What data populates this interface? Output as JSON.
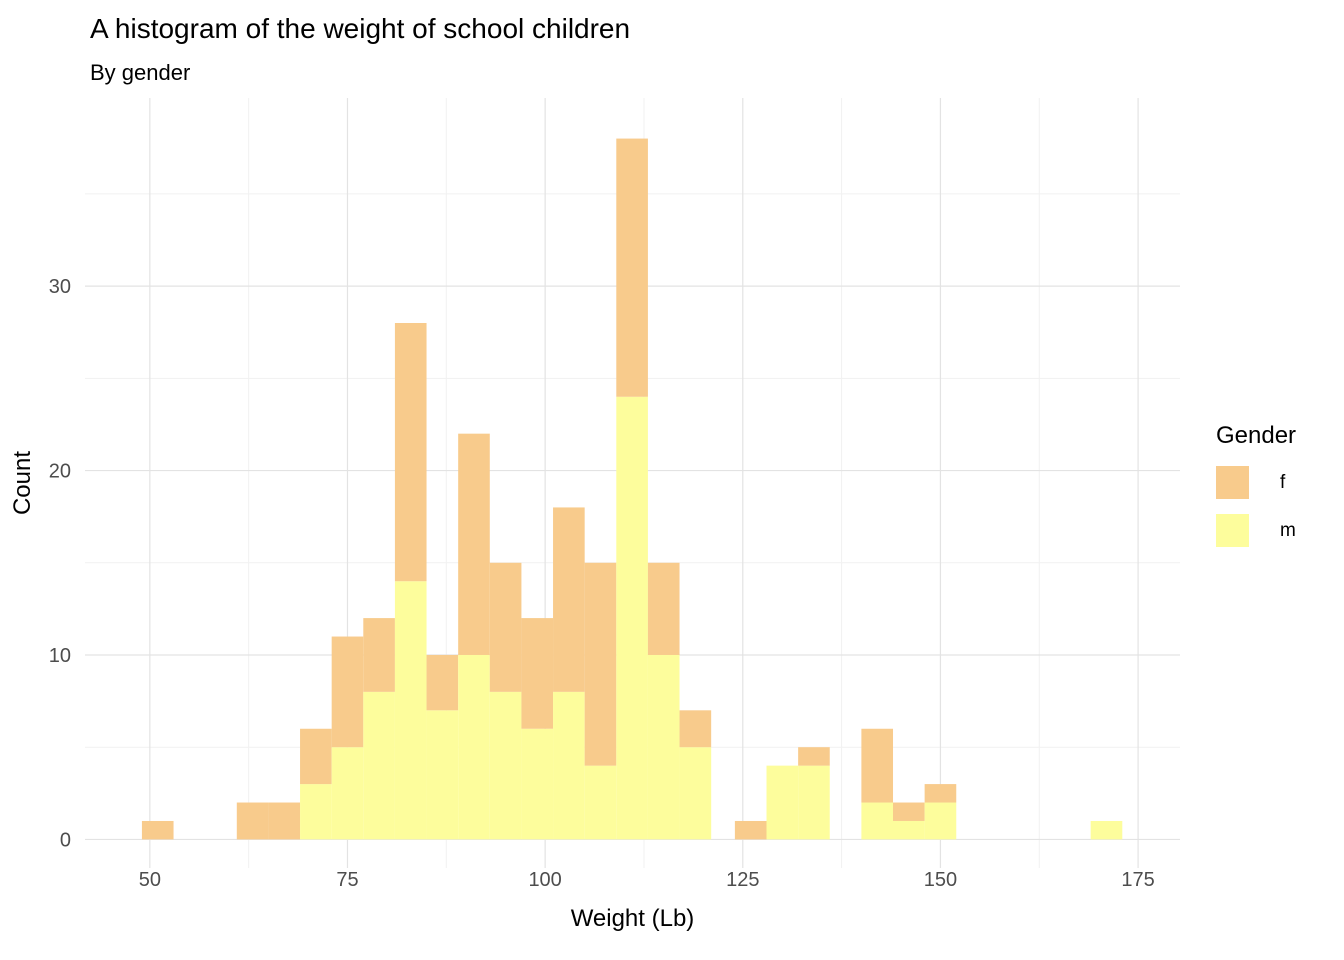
{
  "chart_data": {
    "type": "bar",
    "subtype": "stacked_histogram",
    "title": "A histogram of the weight of school children",
    "subtitle": "By gender",
    "xlabel": "Weight (Lb)",
    "ylabel": "Count",
    "x_ticks": [
      50,
      75,
      100,
      125,
      150,
      175
    ],
    "x_minor_ticks": [
      62.5,
      87.5,
      112.5,
      137.5,
      162.5
    ],
    "y_ticks": [
      0,
      10,
      20,
      30
    ],
    "y_minor_ticks": [
      5,
      15,
      25,
      35
    ],
    "xlim": [
      41.8,
      180.3
    ],
    "ylim": [
      -1.55,
      40.2
    ],
    "bin_width": 4,
    "grid": true,
    "legend": {
      "title": "Gender",
      "position": "right",
      "entries": [
        {
          "label": "f",
          "color": "#F8CB8C"
        },
        {
          "label": "m",
          "color": "#FDFD9C"
        }
      ]
    },
    "stack_order": [
      "m",
      "f"
    ],
    "bins": [
      {
        "x0": 49,
        "m": 0,
        "f": 1
      },
      {
        "x0": 61,
        "m": 0,
        "f": 2
      },
      {
        "x0": 65,
        "m": 0,
        "f": 2
      },
      {
        "x0": 69,
        "m": 3,
        "f": 3
      },
      {
        "x0": 73,
        "m": 5,
        "f": 6
      },
      {
        "x0": 77,
        "m": 8,
        "f": 4
      },
      {
        "x0": 81,
        "m": 14,
        "f": 14
      },
      {
        "x0": 85,
        "m": 7,
        "f": 3
      },
      {
        "x0": 89,
        "m": 10,
        "f": 12
      },
      {
        "x0": 93,
        "m": 8,
        "f": 7
      },
      {
        "x0": 97,
        "m": 6,
        "f": 6
      },
      {
        "x0": 101,
        "m": 8,
        "f": 10
      },
      {
        "x0": 105,
        "m": 4,
        "f": 11
      },
      {
        "x0": 109,
        "m": 24,
        "f": 14
      },
      {
        "x0": 113,
        "m": 10,
        "f": 5
      },
      {
        "x0": 117,
        "m": 5,
        "f": 2
      },
      {
        "x0": 124,
        "m": 0,
        "f": 1
      },
      {
        "x0": 128,
        "m": 4,
        "f": 0
      },
      {
        "x0": 132,
        "m": 4,
        "f": 1
      },
      {
        "x0": 140,
        "m": 2,
        "f": 4
      },
      {
        "x0": 144,
        "m": 1,
        "f": 1
      },
      {
        "x0": 148,
        "m": 2,
        "f": 1
      },
      {
        "x0": 169,
        "m": 1,
        "f": 0
      }
    ],
    "colors": {
      "grid_major": "#E3E3E3",
      "grid_minor": "#F1F1F1",
      "tick_label": "#4D4D4D",
      "text": "#000000",
      "background": "#FFFFFF"
    }
  }
}
